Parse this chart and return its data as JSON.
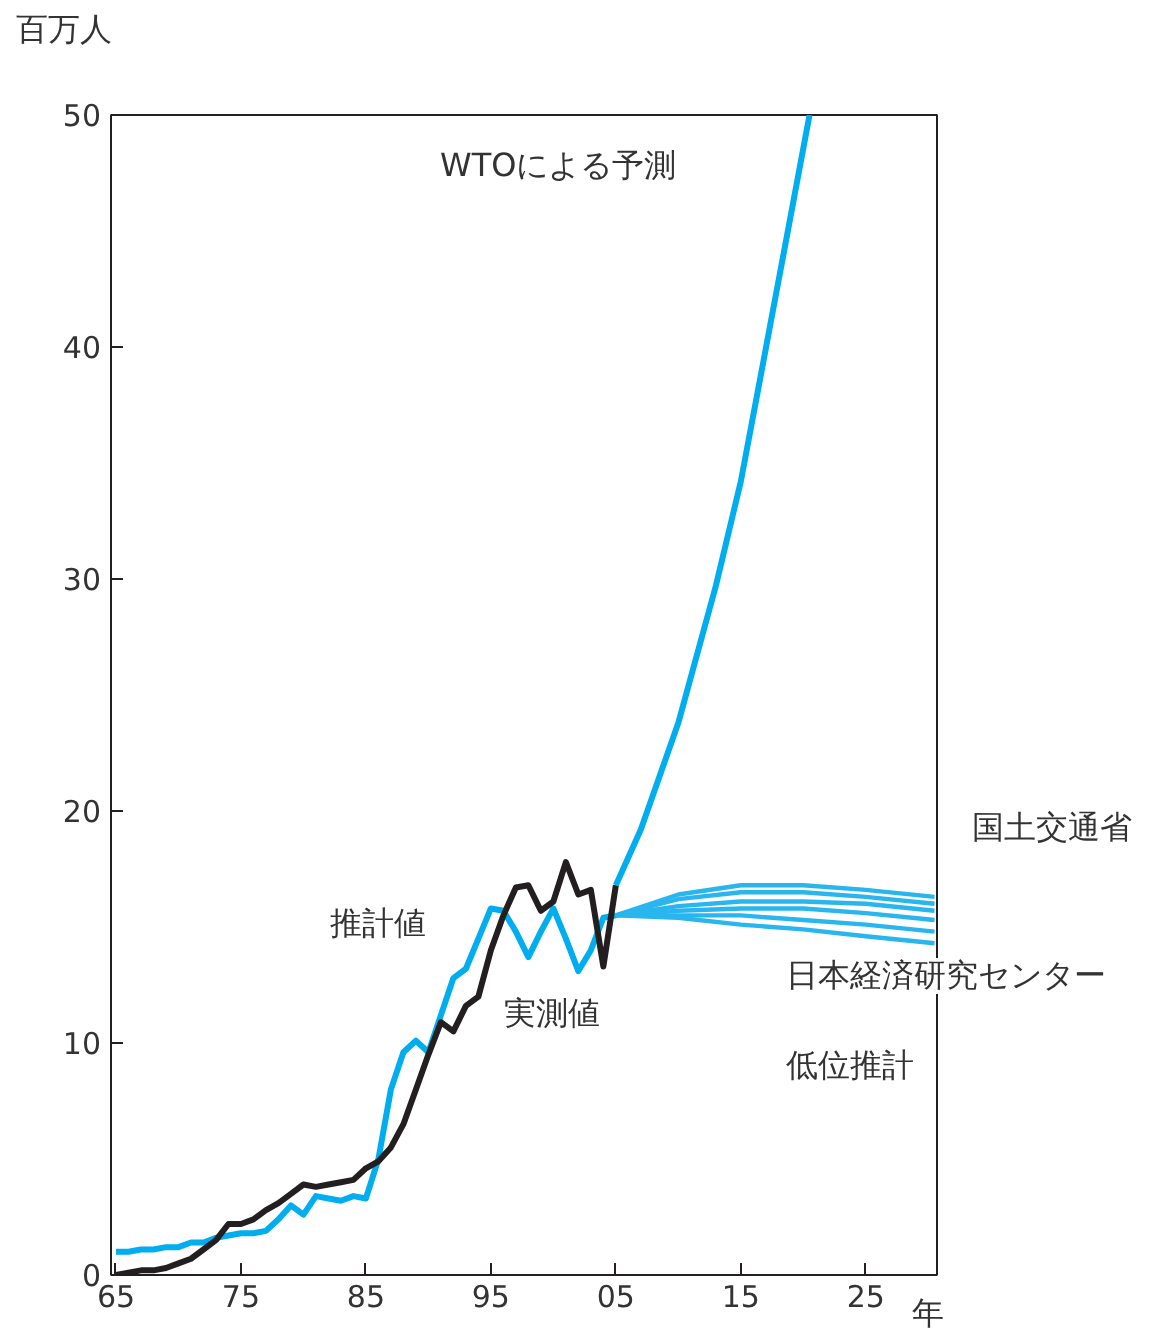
{
  "chart_data": {
    "type": "line",
    "ylabel": "百万人",
    "xlabel": "年",
    "xlim": [
      1964.6,
      2030.7
    ],
    "ylim": [
      0,
      50
    ],
    "xticks": [
      {
        "value": 1965,
        "label": "65"
      },
      {
        "value": 1975,
        "label": "75"
      },
      {
        "value": 1985,
        "label": "85"
      },
      {
        "value": 1995,
        "label": "95"
      },
      {
        "value": 2005,
        "label": "05"
      },
      {
        "value": 2015,
        "label": "15"
      },
      {
        "value": 2025,
        "label": "25"
      }
    ],
    "yticks": [
      0,
      10,
      20,
      30,
      40,
      50
    ],
    "grid": false,
    "marker": "none",
    "line_style": "solid",
    "series": [
      {
        "color": "#00aeef",
        "x": [
          1965,
          1966,
          1967,
          1968,
          1969,
          1970,
          1971,
          1972,
          1973,
          1974,
          1975,
          1976,
          1977,
          1978,
          1979,
          1980,
          1981,
          1982,
          1983,
          1984,
          1985,
          1986,
          1987,
          1988,
          1989,
          1990,
          1991,
          1992,
          1993,
          1994,
          1995,
          1996,
          1997,
          1998,
          1999,
          2000,
          2001,
          2002,
          2003,
          2004,
          2005
        ],
        "values": [
          1.0,
          1.0,
          1.1,
          1.1,
          1.2,
          1.2,
          1.4,
          1.4,
          1.6,
          1.7,
          1.8,
          1.8,
          1.9,
          2.4,
          3.0,
          2.6,
          3.4,
          3.3,
          3.2,
          3.4,
          3.3,
          5.0,
          8.0,
          9.6,
          10.1,
          9.6,
          11.2,
          12.8,
          13.2,
          14.5,
          15.8,
          15.7,
          14.8,
          13.7,
          14.8,
          15.8,
          14.5,
          13.1,
          14.0,
          15.4,
          15.5
        ]
      },
      {
        "color": "#231f20",
        "x": [
          1965,
          1966,
          1967,
          1968,
          1969,
          1970,
          1971,
          1972,
          1973,
          1974,
          1975,
          1976,
          1977,
          1978,
          1979,
          1980,
          1981,
          1982,
          1983,
          1984,
          1985,
          1986,
          1987,
          1988,
          1989,
          1990,
          1991,
          1992,
          1993,
          1994,
          1995,
          1996,
          1997,
          1998,
          1999,
          2000,
          2001,
          2002,
          2003,
          2004,
          2005
        ],
        "values": [
          0.0,
          0.1,
          0.2,
          0.2,
          0.3,
          0.5,
          0.7,
          1.1,
          1.5,
          2.2,
          2.2,
          2.4,
          2.8,
          3.1,
          3.5,
          3.9,
          3.8,
          3.9,
          4.0,
          4.1,
          4.6,
          4.9,
          5.5,
          6.5,
          8.0,
          9.5,
          10.9,
          10.5,
          11.6,
          12.0,
          14.0,
          15.5,
          16.7,
          16.8,
          15.7,
          16.1,
          17.8,
          16.4,
          16.6,
          13.3,
          16.8
        ]
      },
      {
        "color": "#00aeef",
        "x": [
          2005,
          2007,
          2010,
          2013,
          2015,
          2018,
          2020.5
        ],
        "values": [
          16.8,
          19.2,
          23.8,
          29.7,
          34.2,
          42.8,
          50
        ]
      },
      {
        "name": "国土交通省",
        "color": "#29b6ef",
        "x": [
          2005,
          2010,
          2015,
          2020,
          2025,
          2030.5
        ],
        "values": [
          15.5,
          16.4,
          16.8,
          16.8,
          16.6,
          16.3
        ]
      },
      {
        "color": "#29b6ef",
        "x": [
          2005,
          2010,
          2015,
          2020,
          2025,
          2030.5
        ],
        "values": [
          15.5,
          16.2,
          16.5,
          16.5,
          16.3,
          16.0
        ]
      },
      {
        "color": "#29b6ef",
        "x": [
          2005,
          2010,
          2015,
          2020,
          2025,
          2030.5
        ],
        "values": [
          15.5,
          15.9,
          16.1,
          16.1,
          16.0,
          15.7
        ]
      },
      {
        "color": "#29b6ef",
        "x": [
          2005,
          2010,
          2015,
          2020,
          2025,
          2030.5
        ],
        "values": [
          15.5,
          15.7,
          15.8,
          15.8,
          15.6,
          15.3
        ]
      },
      {
        "color": "#29b6ef",
        "x": [
          2005,
          2010,
          2015,
          2020,
          2025,
          2030.5
        ],
        "values": [
          15.5,
          15.5,
          15.5,
          15.3,
          15.1,
          14.8
        ]
      },
      {
        "color": "#29b6ef",
        "x": [
          2005,
          2010,
          2015,
          2020,
          2025,
          2030.5
        ],
        "values": [
          15.5,
          15.4,
          15.1,
          14.9,
          14.6,
          14.3
        ]
      }
    ],
    "annotations": [
      "WTOによる予測",
      "推計値",
      "実測値",
      "日本経済研究センター",
      "低位推計"
    ]
  }
}
